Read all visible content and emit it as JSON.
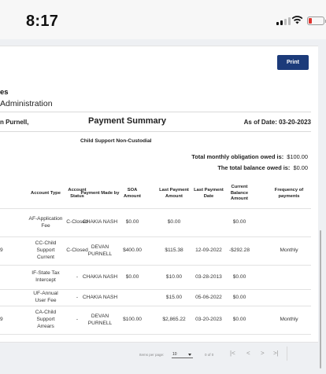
{
  "status_bar": {
    "time": "8:17"
  },
  "actions": {
    "print_label": "Print"
  },
  "header": {
    "org_line1": "es",
    "org_line2": "Administration",
    "name": "n Purnell,",
    "title": "Payment Summary",
    "as_of": "As of Date: 03-20-2023",
    "subtitle": "Child Support Non-Custodial"
  },
  "summary": {
    "obligation_label": "Total monthly obligation owed is:",
    "obligation_value": "$100.00",
    "balance_label": "The total balance owed is:",
    "balance_value": "$0.00"
  },
  "table": {
    "headers": {
      "type": "Account Type",
      "status": "Account Status",
      "made_by": "Payment Made by",
      "soa": "SOA Amount",
      "last_amount": "Last Payment Amount",
      "last_date": "Last Payment Date",
      "balance": "Current Balance Amount",
      "frequency": "Frequency of payments"
    },
    "rows": [
      {
        "clip": "",
        "type": "AF-Application Fee",
        "status": "C-Closed",
        "made_by": "CHAKIA NASH",
        "soa": "$0.00",
        "last_amount": "$0.00",
        "last_date": "",
        "balance": "$0.00",
        "frequency": ""
      },
      {
        "clip": "9",
        "type": "CC-Child Support Current",
        "status": "C-Closed",
        "made_by": "DEVAN PURNELL",
        "soa": "$400.00",
        "last_amount": "$115.38",
        "last_date": "12-09-2022",
        "balance": "-$292.28",
        "frequency": "Monthly"
      },
      {
        "clip": "",
        "type": "IF-State Tax Intercept",
        "status": "-",
        "made_by": "CHAKIA NASH",
        "soa": "$0.00",
        "last_amount": "$10.00",
        "last_date": "03-28-2013",
        "balance": "$0.00",
        "frequency": ""
      },
      {
        "clip": "",
        "type": "UF-Annual User Fee",
        "status": "-",
        "made_by": "CHAKIA NASH",
        "soa": "",
        "last_amount": "$15.00",
        "last_date": "05-06-2022",
        "balance": "$0.00",
        "frequency": ""
      },
      {
        "clip": "9",
        "type": "CA-Child Support Arrears",
        "status": "-",
        "made_by": "DEVAN PURNELL",
        "soa": "$100.00",
        "last_amount": "$2,865.22",
        "last_date": "03-20-2023",
        "balance": "$0.00",
        "frequency": "Monthly"
      }
    ]
  },
  "pagination": {
    "items_per_page_label": "Items per page:",
    "items_per_page_value": "10",
    "range_label": "0 of 0"
  }
}
